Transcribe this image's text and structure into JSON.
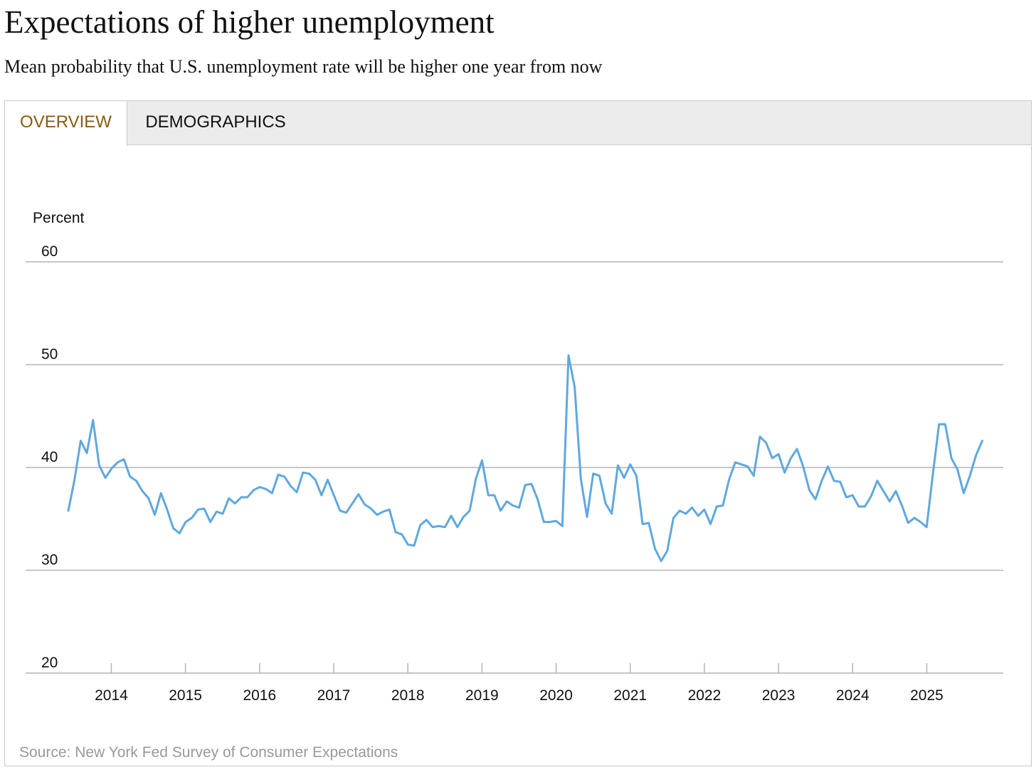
{
  "title": "Expectations of higher unemployment",
  "subtitle": "Mean probability that U.S. unemployment rate will be higher one year from now",
  "tabs": {
    "overview": "OVERVIEW",
    "demographics": "DEMOGRAPHICS"
  },
  "source": "Source: New York Fed Survey of Consumer Expectations",
  "colors": {
    "line": "#5fa8de",
    "grid": "#b4b4b4",
    "active_tab": "#8a5a12"
  },
  "chart_data": {
    "type": "line",
    "ylabel": "Percent",
    "ylim": [
      20,
      60
    ],
    "yticks": [
      60,
      50,
      40,
      30,
      20
    ],
    "xlim": [
      2013.42,
      2025.84
    ],
    "xticks": [
      2014,
      2015,
      2016,
      2017,
      2018,
      2019,
      2020,
      2021,
      2022,
      2023,
      2024,
      2025
    ],
    "grid": true,
    "series": [
      {
        "name": "Mean probability",
        "start": 2013.42,
        "step": 0.0833,
        "values": [
          35.8,
          38.8,
          42.6,
          41.4,
          44.6,
          40.2,
          39.0,
          39.9,
          40.5,
          40.8,
          39.1,
          38.7,
          37.7,
          37.0,
          35.4,
          37.5,
          35.9,
          34.1,
          33.6,
          34.7,
          35.1,
          35.9,
          36.0,
          34.7,
          35.7,
          35.5,
          37.0,
          36.5,
          37.1,
          37.1,
          37.8,
          38.1,
          37.9,
          37.5,
          39.3,
          39.1,
          38.2,
          37.6,
          39.5,
          39.4,
          38.8,
          37.3,
          38.8,
          37.3,
          35.8,
          35.6,
          36.5,
          37.4,
          36.4,
          36.0,
          35.4,
          35.7,
          35.9,
          33.7,
          33.5,
          32.5,
          32.4,
          34.4,
          34.9,
          34.2,
          34.3,
          34.2,
          35.3,
          34.2,
          35.2,
          35.8,
          38.9,
          40.7,
          37.3,
          37.3,
          35.8,
          36.7,
          36.3,
          36.1,
          38.3,
          38.4,
          36.9,
          34.7,
          34.7,
          34.8,
          34.3,
          50.9,
          47.8,
          38.9,
          35.2,
          39.4,
          39.2,
          36.5,
          35.5,
          40.2,
          39.0,
          40.3,
          39.2,
          34.5,
          34.6,
          32.1,
          30.9,
          31.9,
          35.1,
          35.8,
          35.5,
          36.1,
          35.3,
          35.9,
          34.5,
          36.2,
          36.3,
          38.8,
          40.5,
          40.3,
          40.1,
          39.2,
          43.0,
          42.4,
          40.9,
          41.3,
          39.5,
          40.9,
          41.8,
          40.1,
          37.8,
          36.9,
          38.7,
          40.1,
          38.7,
          38.6,
          37.1,
          37.3,
          36.2,
          36.2,
          37.2,
          38.7,
          37.7,
          36.7,
          37.7,
          36.3,
          34.6,
          35.1,
          34.7,
          34.2,
          39.3,
          44.2,
          44.2,
          40.9,
          39.8,
          37.5,
          39.2,
          41.2,
          42.6
        ]
      }
    ]
  }
}
